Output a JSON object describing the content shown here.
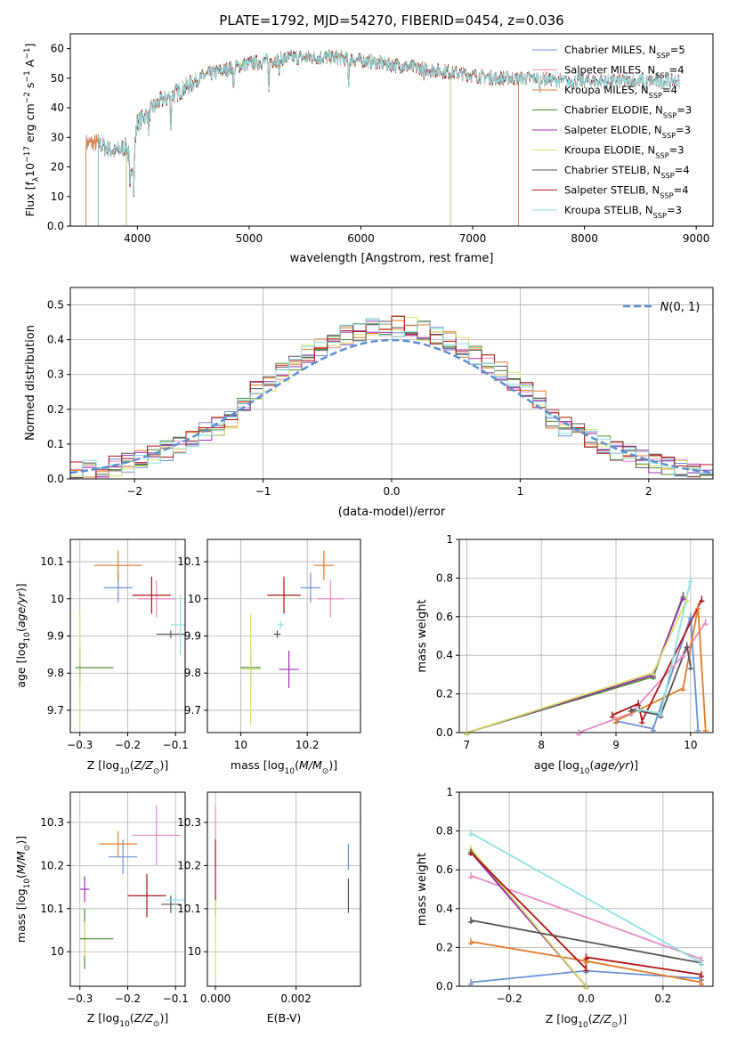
{
  "title": "PLATE=1792, MJD=54270, FIBERID=0454, z=0.036",
  "colors": {
    "chabrier_miles": "#6b8fd6",
    "salpeter_miles": "#e78ac3",
    "kroupa_miles": "#e07b28",
    "chabrier_elodie": "#4e8c3a",
    "salpeter_elodie": "#9b30b0",
    "kroupa_elodie": "#d7e06a",
    "chabrier_stelib": "#555555",
    "salpeter_stelib": "#b01515",
    "kroupa_stelib": "#8fe0e0",
    "normal_curve": "#5b8fd0",
    "grid": "#b0b0b0"
  },
  "chart_data": [
    {
      "type": "line",
      "panel": "spectrum",
      "xlabel": "wavelength [Angstrom, rest frame]",
      "ylabel": "Flux [f_λ 10^-17 erg cm^-2 s^-1 A^-1]",
      "xlim": [
        3400,
        9150
      ],
      "ylim": [
        0,
        65
      ],
      "xticks": [
        4000,
        5000,
        6000,
        7000,
        8000,
        9000
      ],
      "yticks": [
        0,
        10,
        20,
        30,
        40,
        50,
        60
      ],
      "grid": false,
      "legend_placement": "upper right",
      "legend": [
        "Chabrier MILES, N_SSP=5",
        "Salpeter MILES, N_SSP=4",
        "Kroupa MILES, N_SSP=4",
        "Chabrier ELODIE, N_SSP=3",
        "Salpeter ELODIE, N_SSP=3",
        "Kroupa ELODIE, N_SSP=3",
        "Chabrier STELIB, N_SSP=4",
        "Salpeter STELIB, N_SSP=4",
        "Kroupa STELIB, N_SSP=3"
      ],
      "continuum": [
        [
          3650,
          28
        ],
        [
          3800,
          25
        ],
        [
          3900,
          27
        ],
        [
          3950,
          20
        ],
        [
          4000,
          35
        ],
        [
          4200,
          42
        ],
        [
          4400,
          46
        ],
        [
          4600,
          51
        ],
        [
          4800,
          53
        ],
        [
          5000,
          55
        ],
        [
          5200,
          56
        ],
        [
          5400,
          57
        ],
        [
          5600,
          57
        ],
        [
          5800,
          57
        ],
        [
          6000,
          56
        ],
        [
          6200,
          55
        ],
        [
          6400,
          54
        ],
        [
          6600,
          53
        ],
        [
          6800,
          52
        ],
        [
          7000,
          51
        ],
        [
          7200,
          50
        ],
        [
          7400,
          50
        ],
        [
          7600,
          50
        ],
        [
          7800,
          49
        ],
        [
          8000,
          49
        ],
        [
          8200,
          49
        ],
        [
          8400,
          49
        ],
        [
          8600,
          49
        ],
        [
          8850,
          49
        ]
      ],
      "absorption_lines": [
        [
          3934,
          12
        ],
        [
          3969,
          14
        ],
        [
          4102,
          6
        ],
        [
          4300,
          10
        ],
        [
          4861,
          8
        ],
        [
          5175,
          9
        ],
        [
          5270,
          5
        ],
        [
          5890,
          9
        ],
        [
          6563,
          4
        ],
        [
          7600,
          5
        ],
        [
          8542,
          4
        ]
      ],
      "model_ranges": [
        {
          "model": "chabrier_miles",
          "x": [
            3540,
            7410
          ]
        },
        {
          "model": "salpeter_miles",
          "x": [
            3540,
            7410
          ]
        },
        {
          "model": "kroupa_miles",
          "x": [
            3540,
            7410
          ]
        },
        {
          "model": "chabrier_elodie",
          "x": [
            3900,
            6800
          ]
        },
        {
          "model": "salpeter_elodie",
          "x": [
            3900,
            6800
          ]
        },
        {
          "model": "kroupa_elodie",
          "x": [
            3900,
            6800
          ]
        },
        {
          "model": "chabrier_stelib",
          "x": [
            3650,
            8850
          ]
        },
        {
          "model": "salpeter_stelib",
          "x": [
            3650,
            8850
          ]
        },
        {
          "model": "kroupa_stelib",
          "x": [
            3650,
            8850
          ]
        }
      ]
    },
    {
      "type": "histogram",
      "panel": "residuals",
      "xlabel": "(data-model)/error",
      "ylabel": "Normed distribution",
      "xlim": [
        -2.5,
        2.5
      ],
      "ylim": [
        0,
        0.55
      ],
      "xticks": [
        -2,
        -1,
        0,
        1,
        2
      ],
      "yticks": [
        0.0,
        0.1,
        0.2,
        0.3,
        0.4,
        0.5
      ],
      "grid": true,
      "legend_placement": "upper right",
      "legend": [
        "N(0,1)"
      ],
      "bin_width": 0.1,
      "reference_curve": "N(0,1)"
    },
    {
      "type": "scatter",
      "panel": "age_vs_Z",
      "xlabel": "Z [log10(Z/Z_sun)]",
      "ylabel": "age [log10(age/yr)]",
      "xlim": [
        -0.32,
        -0.08
      ],
      "ylim": [
        9.64,
        10.16
      ],
      "xticks": [
        -0.3,
        -0.2,
        -0.1
      ],
      "yticks": [
        9.7,
        9.8,
        9.9,
        10.0,
        10.1
      ],
      "grid": true,
      "points": [
        {
          "model": "chabrier_miles",
          "x": -0.22,
          "y": 10.03,
          "xerr": 0.03,
          "yerr": 0.04
        },
        {
          "model": "salpeter_miles",
          "x": -0.14,
          "y": 10.0,
          "xerr": 0.04,
          "yerr": 0.05
        },
        {
          "model": "kroupa_miles",
          "x": -0.22,
          "y": 10.09,
          "xerr": 0.05,
          "yerr": 0.04
        },
        {
          "model": "chabrier_elodie",
          "x": -0.3,
          "y": 9.82,
          "xerr": 0.0,
          "yerr": 0.05
        },
        {
          "model": "salpeter_elodie",
          "x": -0.3,
          "y": 9.81,
          "xerr": 0.0,
          "yerr": 0.02
        },
        {
          "model": "kroupa_elodie",
          "x": -0.3,
          "y": 9.81,
          "xerr": 0.0,
          "yerr": 0.15
        },
        {
          "model": "chabrier_stelib",
          "x": -0.11,
          "y": 9.905,
          "xerr": 0.03,
          "yerr": 0.01
        },
        {
          "model": "salpeter_stelib",
          "x": -0.15,
          "y": 10.01,
          "xerr": 0.04,
          "yerr": 0.05
        },
        {
          "model": "kroupa_stelib",
          "x": -0.09,
          "y": 9.93,
          "xerr": 0.02,
          "yerr": 0.08
        },
        {
          "model": "chabrier_elodie",
          "x": -0.27,
          "y": 9.815,
          "xerr": 0.04,
          "yerr": 0.0
        }
      ]
    },
    {
      "type": "scatter",
      "panel": "age_vs_mass",
      "xlabel": "mass [log10(M/M_sun)]",
      "ylabel": "",
      "xlim": [
        9.9,
        10.36
      ],
      "ylim": [
        9.64,
        10.16
      ],
      "xticks": [
        10.0,
        10.2
      ],
      "yticks": [
        9.7,
        9.8,
        9.9,
        10.0,
        10.1
      ],
      "grid": true,
      "points": [
        {
          "model": "chabrier_miles",
          "x": 10.21,
          "y": 10.03,
          "xerr": 0.03,
          "yerr": 0.04
        },
        {
          "model": "salpeter_miles",
          "x": 10.27,
          "y": 10.0,
          "xerr": 0.04,
          "yerr": 0.05
        },
        {
          "model": "kroupa_miles",
          "x": 10.25,
          "y": 10.09,
          "xerr": 0.03,
          "yerr": 0.04
        },
        {
          "model": "chabrier_elodie",
          "x": 10.03,
          "y": 9.815,
          "xerr": 0.03,
          "yerr": 0.05
        },
        {
          "model": "salpeter_elodie",
          "x": 10.145,
          "y": 9.81,
          "xerr": 0.03,
          "yerr": 0.05
        },
        {
          "model": "kroupa_elodie",
          "x": 10.03,
          "y": 9.81,
          "xerr": 0.03,
          "yerr": 0.15
        },
        {
          "model": "chabrier_stelib",
          "x": 10.11,
          "y": 9.905,
          "xerr": 0.01,
          "yerr": 0.01
        },
        {
          "model": "salpeter_stelib",
          "x": 10.13,
          "y": 10.01,
          "xerr": 0.05,
          "yerr": 0.05
        },
        {
          "model": "kroupa_stelib",
          "x": 10.12,
          "y": 9.93,
          "xerr": 0.01,
          "yerr": 0.01
        }
      ]
    },
    {
      "type": "line",
      "panel": "mass_weight_vs_age",
      "xlabel": "age [log10(age/yr)]",
      "ylabel": "mass weight",
      "xlim": [
        6.9,
        10.3
      ],
      "ylim": [
        0.0,
        1.0
      ],
      "xticks": [
        7,
        8,
        9,
        10
      ],
      "yticks": [
        0.0,
        0.2,
        0.4,
        0.6,
        0.8,
        1.0
      ],
      "grid": true,
      "series": [
        {
          "model": "chabrier_miles",
          "points": [
            [
              9.0,
              0.06
            ],
            [
              9.5,
              0.02
            ],
            [
              10.0,
              0.6
            ],
            [
              10.1,
              0.02
            ]
          ]
        },
        {
          "model": "salpeter_miles",
          "points": [
            [
              8.5,
              0.0
            ],
            [
              9.2,
              0.1
            ],
            [
              9.9,
              0.4
            ],
            [
              10.2,
              0.57
            ]
          ]
        },
        {
          "model": "kroupa_miles",
          "points": [
            [
              9.0,
              0.06
            ],
            [
              9.9,
              0.23
            ],
            [
              10.1,
              0.65
            ],
            [
              10.2,
              0.02
            ]
          ]
        },
        {
          "model": "chabrier_elodie",
          "points": [
            [
              7.0,
              0.0
            ],
            [
              9.5,
              0.29
            ],
            [
              9.9,
              0.71
            ]
          ]
        },
        {
          "model": "salpeter_elodie",
          "points": [
            [
              7.0,
              0.0
            ],
            [
              9.5,
              0.3
            ],
            [
              9.9,
              0.7
            ]
          ]
        },
        {
          "model": "kroupa_elodie",
          "points": [
            [
              7.0,
              0.0
            ],
            [
              9.5,
              0.31
            ],
            [
              9.95,
              0.69
            ]
          ]
        },
        {
          "model": "chabrier_stelib",
          "points": [
            [
              9.2,
              0.12
            ],
            [
              9.6,
              0.09
            ],
            [
              9.95,
              0.45
            ],
            [
              10.0,
              0.34
            ]
          ]
        },
        {
          "model": "salpeter_stelib",
          "points": [
            [
              8.95,
              0.09
            ],
            [
              9.3,
              0.15
            ],
            [
              9.35,
              0.06
            ],
            [
              10.15,
              0.69
            ]
          ]
        },
        {
          "model": "kroupa_stelib",
          "points": [
            [
              9.3,
              0.12
            ],
            [
              9.6,
              0.1
            ],
            [
              10.0,
              0.79
            ]
          ]
        }
      ]
    },
    {
      "type": "scatter",
      "panel": "mass_vs_Z",
      "xlabel": "Z [log10(Z/Z_sun)]",
      "ylabel": "mass [log10(M/M_sun)]",
      "xlim": [
        -0.32,
        -0.08
      ],
      "ylim": [
        9.92,
        10.37
      ],
      "xticks": [
        -0.3,
        -0.2,
        -0.1
      ],
      "yticks": [
        10.0,
        10.1,
        10.2,
        10.3
      ],
      "grid": true,
      "points": [
        {
          "model": "chabrier_miles",
          "x": -0.21,
          "y": 10.22,
          "xerr": 0.03,
          "yerr": 0.04
        },
        {
          "model": "salpeter_miles",
          "x": -0.14,
          "y": 10.27,
          "xerr": 0.05,
          "yerr": 0.07
        },
        {
          "model": "kroupa_miles",
          "x": -0.22,
          "y": 10.25,
          "xerr": 0.04,
          "yerr": 0.03
        },
        {
          "model": "chabrier_elodie",
          "x": -0.29,
          "y": 10.03,
          "xerr": 0.01,
          "yerr": 0.07
        },
        {
          "model": "salpeter_elodie",
          "x": -0.29,
          "y": 10.145,
          "xerr": 0.01,
          "yerr": 0.03
        },
        {
          "model": "kroupa_elodie",
          "x": -0.29,
          "y": 10.03,
          "xerr": 0.01,
          "yerr": 0.04
        },
        {
          "model": "chabrier_stelib",
          "x": -0.11,
          "y": 10.11,
          "xerr": 0.02,
          "yerr": 0.02
        },
        {
          "model": "salpeter_stelib",
          "x": -0.16,
          "y": 10.13,
          "xerr": 0.04,
          "yerr": 0.05
        },
        {
          "model": "kroupa_stelib",
          "x": -0.1,
          "y": 10.12,
          "xerr": 0.02,
          "yerr": 0.02
        },
        {
          "model": "chabrier_elodie",
          "x": -0.265,
          "y": 10.03,
          "xerr": 0.035,
          "yerr": 0.0
        }
      ]
    },
    {
      "type": "scatter",
      "panel": "mass_vs_EBV",
      "xlabel": "E(B-V)",
      "ylabel": "",
      "xlim": [
        -0.0002,
        0.0036
      ],
      "ylim": [
        9.92,
        10.37
      ],
      "xticks": [
        0.0,
        0.002
      ],
      "xtick_labels": [
        "0.000",
        "0.002"
      ],
      "yticks": [
        10.0,
        10.1,
        10.2,
        10.3
      ],
      "grid": true,
      "points": [
        {
          "model": "salpeter_miles",
          "x": 0.0,
          "y": 10.27,
          "xerr": 0.0,
          "yerr": 0.07
        },
        {
          "model": "salpeter_stelib",
          "x": 0.0,
          "y": 10.17,
          "xerr": 0.0,
          "yerr": 0.09
        },
        {
          "model": "kroupa_elodie",
          "x": 0.0,
          "y": 10.03,
          "xerr": 0.0,
          "yerr": 0.09
        },
        {
          "model": "chabrier_miles",
          "x": 0.0033,
          "y": 10.22,
          "xerr": 0.0,
          "yerr": 0.03
        },
        {
          "model": "chabrier_stelib",
          "x": 0.0033,
          "y": 10.13,
          "xerr": 0.0,
          "yerr": 0.04
        }
      ]
    },
    {
      "type": "line",
      "panel": "mass_weight_vs_Z",
      "xlabel": "Z [log10(Z/Z_sun)]",
      "ylabel": "mass weight",
      "xlim": [
        -0.33,
        0.33
      ],
      "ylim": [
        0.0,
        1.0
      ],
      "xticks": [
        -0.2,
        0.0,
        0.2
      ],
      "yticks": [
        0.0,
        0.2,
        0.4,
        0.6,
        0.8,
        1.0
      ],
      "grid": true,
      "series": [
        {
          "model": "chabrier_miles",
          "points": [
            [
              -0.3,
              0.02
            ],
            [
              0.0,
              0.08
            ],
            [
              0.3,
              0.04
            ]
          ]
        },
        {
          "model": "salpeter_miles",
          "points": [
            [
              -0.3,
              0.57
            ],
            [
              0.3,
              0.14
            ]
          ]
        },
        {
          "model": "kroupa_miles",
          "points": [
            [
              -0.3,
              0.23
            ],
            [
              0.0,
              0.13
            ],
            [
              0.3,
              0.02
            ]
          ]
        },
        {
          "model": "chabrier_elodie",
          "points": [
            [
              -0.3,
              0.7
            ],
            [
              0.0,
              0.0
            ]
          ]
        },
        {
          "model": "salpeter_elodie",
          "points": [
            [
              -0.3,
              0.69
            ],
            [
              0.0,
              0.0
            ]
          ]
        },
        {
          "model": "kroupa_elodie",
          "points": [
            [
              -0.3,
              0.71
            ],
            [
              0.0,
              0.0
            ]
          ]
        },
        {
          "model": "chabrier_stelib",
          "points": [
            [
              -0.3,
              0.34
            ],
            [
              0.3,
              0.12
            ]
          ]
        },
        {
          "model": "salpeter_stelib",
          "points": [
            [
              -0.3,
              0.69
            ],
            [
              0.0,
              0.09
            ],
            [
              0.0,
              0.15
            ],
            [
              0.3,
              0.06
            ]
          ]
        },
        {
          "model": "kroupa_stelib",
          "points": [
            [
              -0.3,
              0.79
            ],
            [
              0.3,
              0.12
            ]
          ]
        }
      ]
    }
  ]
}
